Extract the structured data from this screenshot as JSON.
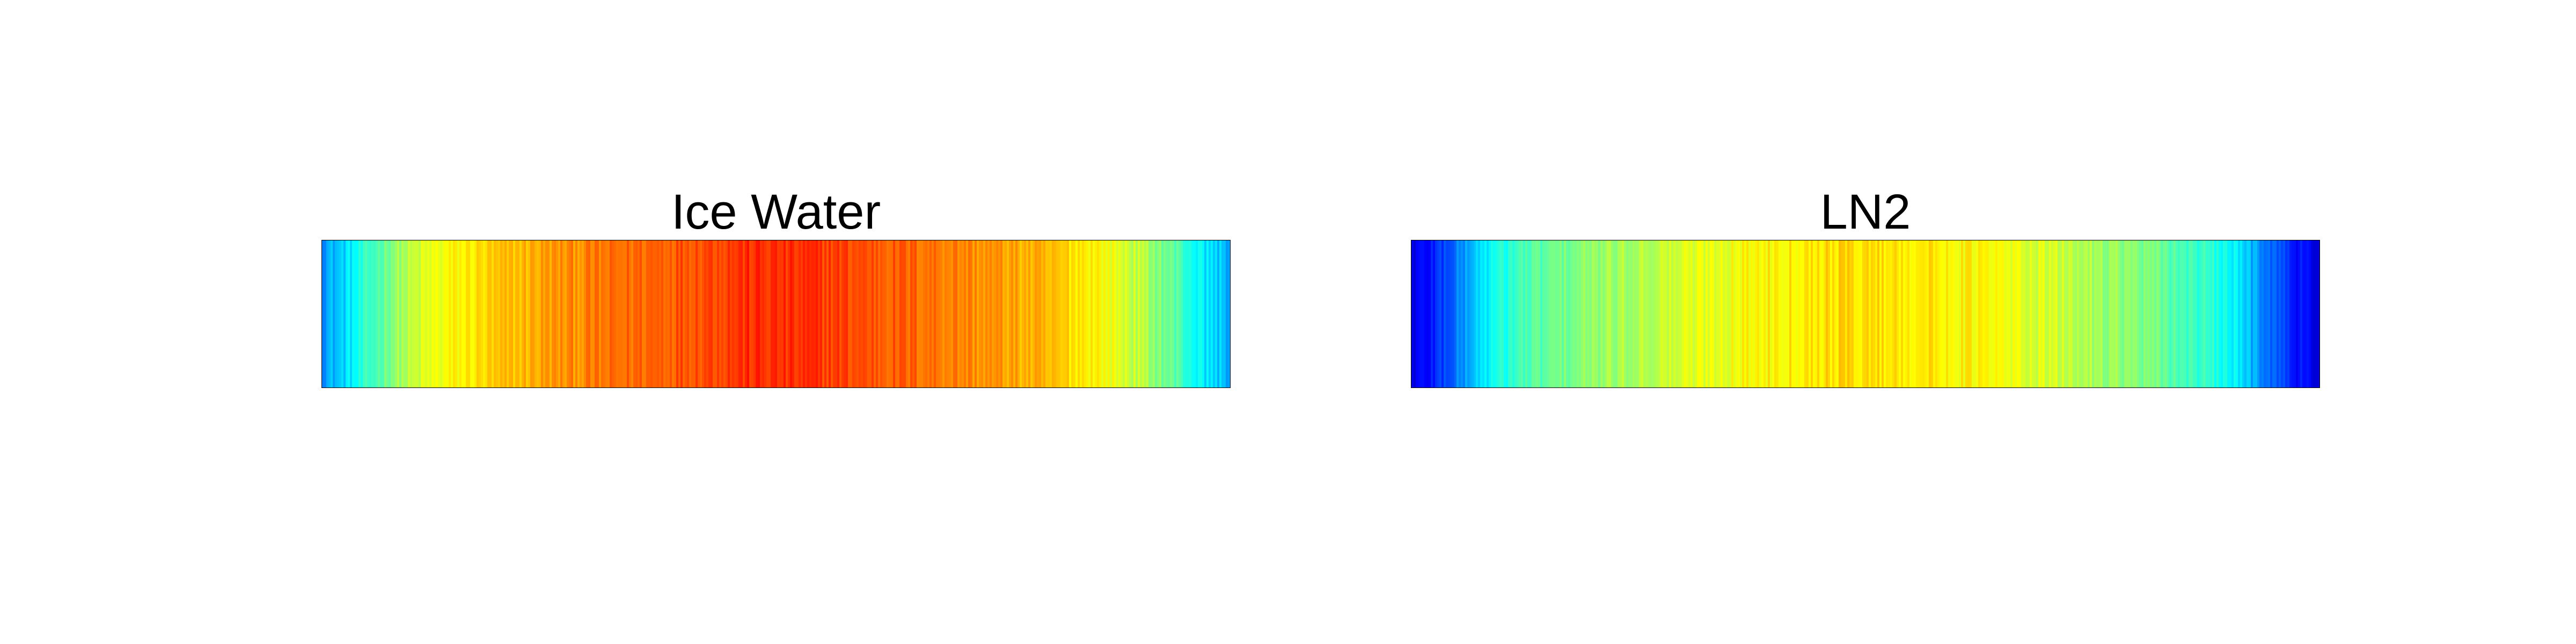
{
  "chart_data": [
    {
      "type": "heatmap",
      "title": "Ice Water",
      "xlabel": "",
      "ylabel": "",
      "axes_visible": false,
      "colormap": "jet",
      "clim": [
        0,
        1
      ],
      "column_profile": {
        "x": [
          0,
          0.02,
          0.05,
          0.08,
          0.12,
          0.18,
          0.25,
          0.32,
          0.4,
          0.47,
          0.55,
          0.62,
          0.7,
          0.78,
          0.85,
          0.9,
          0.94,
          0.97,
          1
        ],
        "value": [
          0.28,
          0.32,
          0.42,
          0.52,
          0.6,
          0.66,
          0.72,
          0.76,
          0.8,
          0.83,
          0.82,
          0.79,
          0.75,
          0.7,
          0.64,
          0.56,
          0.46,
          0.36,
          0.3
        ]
      }
    },
    {
      "type": "heatmap",
      "title": "LN2",
      "xlabel": "",
      "ylabel": "",
      "axes_visible": false,
      "colormap": "jet",
      "clim": [
        0,
        1
      ],
      "column_profile": {
        "x": [
          0,
          0.02,
          0.05,
          0.08,
          0.12,
          0.18,
          0.25,
          0.32,
          0.4,
          0.47,
          0.55,
          0.62,
          0.7,
          0.78,
          0.85,
          0.9,
          0.94,
          0.97,
          1
        ],
        "value": [
          0.1,
          0.14,
          0.24,
          0.36,
          0.44,
          0.5,
          0.55,
          0.6,
          0.64,
          0.66,
          0.65,
          0.63,
          0.58,
          0.52,
          0.45,
          0.38,
          0.26,
          0.15,
          0.1
        ]
      }
    }
  ]
}
